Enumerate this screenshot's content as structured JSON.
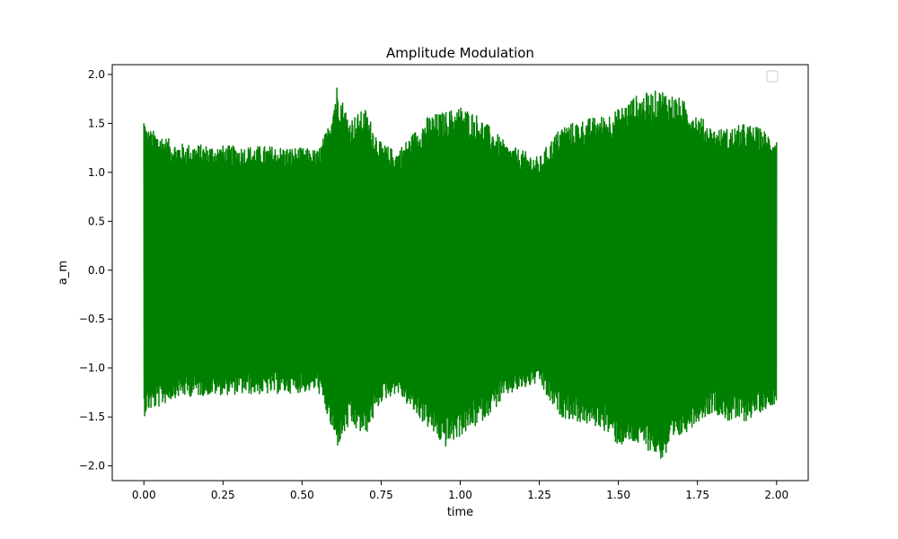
{
  "chart_data": {
    "type": "line",
    "title": "Amplitude Modulation",
    "xlabel": "time",
    "ylabel": "a_m",
    "xlim": [
      -0.1,
      2.1
    ],
    "ylim": [
      -2.15,
      2.1
    ],
    "xticks": [
      0.0,
      0.25,
      0.5,
      0.75,
      1.0,
      1.25,
      1.5,
      1.75,
      2.0
    ],
    "xtick_labels": [
      "0.00",
      "0.25",
      "0.50",
      "0.75",
      "1.00",
      "1.25",
      "1.50",
      "1.75",
      "2.00"
    ],
    "yticks": [
      2.0,
      1.5,
      1.0,
      0.5,
      0.0,
      -0.5,
      -1.0,
      -1.5,
      -2.0
    ],
    "ytick_labels": [
      "2.0",
      "1.5",
      "1.0",
      "0.5",
      "0.0",
      "−0.5",
      "−1.0",
      "−1.5",
      "−2.0"
    ],
    "grid": false,
    "legend": {
      "placement": "top-right",
      "entries": []
    },
    "series": [
      {
        "color": "#008000",
        "x_range": [
          0.0,
          2.0
        ],
        "envelope": {
          "t": [
            0.0,
            0.01,
            0.05,
            0.1,
            0.2,
            0.3,
            0.4,
            0.5,
            0.55,
            0.58,
            0.61,
            0.65,
            0.7,
            0.75,
            0.8,
            0.85,
            0.9,
            0.95,
            1.0,
            1.05,
            1.1,
            1.15,
            1.2,
            1.25,
            1.28,
            1.32,
            1.4,
            1.45,
            1.5,
            1.55,
            1.6,
            1.64,
            1.7,
            1.75,
            1.8,
            1.85,
            1.9,
            1.95,
            2.0
          ],
          "max": [
            1.6,
            1.45,
            1.4,
            1.3,
            1.28,
            1.27,
            1.27,
            1.25,
            1.23,
            1.45,
            1.9,
            1.55,
            1.65,
            1.3,
            1.22,
            1.4,
            1.58,
            1.62,
            1.68,
            1.6,
            1.45,
            1.28,
            1.22,
            1.15,
            1.3,
            1.48,
            1.55,
            1.58,
            1.65,
            1.78,
            1.82,
            1.85,
            1.75,
            1.6,
            1.45,
            1.45,
            1.5,
            1.45,
            1.35
          ],
          "min": [
            -1.5,
            -1.45,
            -1.4,
            -1.3,
            -1.28,
            -1.27,
            -1.27,
            -1.25,
            -1.23,
            -1.5,
            -1.82,
            -1.6,
            -1.7,
            -1.35,
            -1.25,
            -1.45,
            -1.62,
            -1.82,
            -1.7,
            -1.6,
            -1.45,
            -1.28,
            -1.22,
            -1.15,
            -1.35,
            -1.5,
            -1.58,
            -1.62,
            -1.8,
            -1.78,
            -1.85,
            -1.95,
            -1.7,
            -1.55,
            -1.45,
            -1.55,
            -1.55,
            -1.45,
            -1.35
          ]
        }
      }
    ]
  }
}
